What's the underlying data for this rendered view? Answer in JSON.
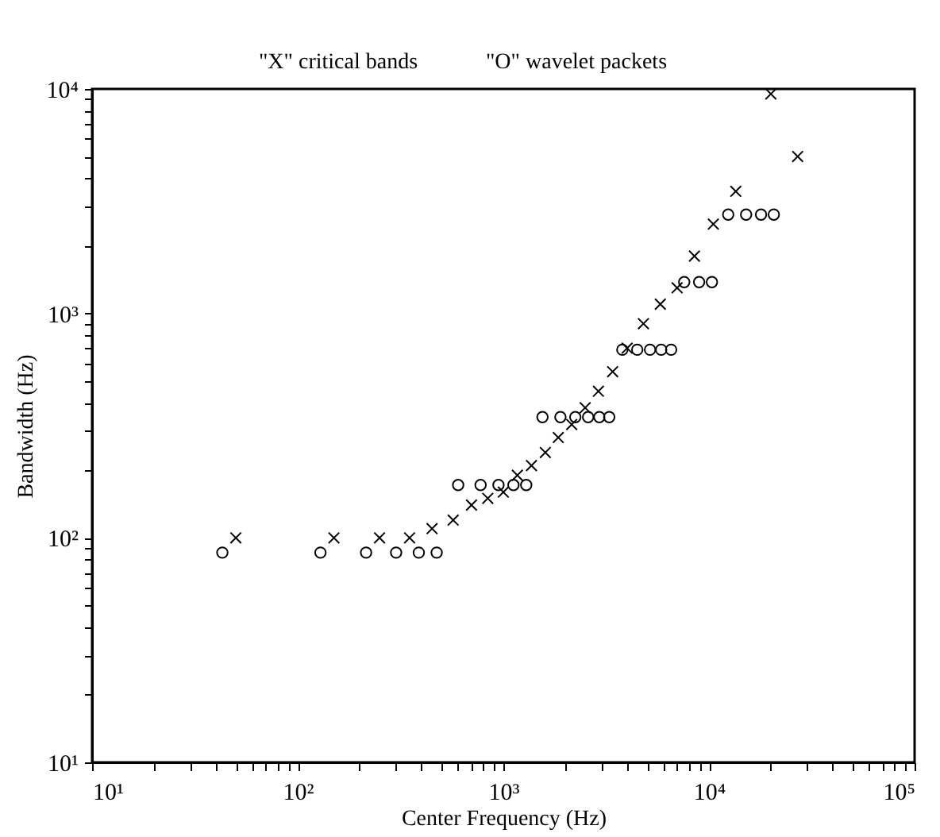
{
  "chart_data": {
    "type": "scatter",
    "xlabel": "Center Frequency (Hz)",
    "ylabel": "Bandwidth (Hz)",
    "annotations": [
      "\"X\" critical bands",
      "\"O\" wavelet packets"
    ],
    "log": "xy",
    "grid": false,
    "xlim": [
      10,
      100000
    ],
    "ylim": [
      10,
      10000
    ],
    "xticks": [
      {
        "value": 10,
        "label": "10¹"
      },
      {
        "value": 20,
        "label": null
      },
      {
        "value": 30,
        "label": null
      },
      {
        "value": 40,
        "label": null
      },
      {
        "value": 50,
        "label": null
      },
      {
        "value": 60,
        "label": null
      },
      {
        "value": 70,
        "label": null
      },
      {
        "value": 80,
        "label": null
      },
      {
        "value": 90,
        "label": null
      },
      {
        "value": 100,
        "label": "10²"
      },
      {
        "value": 200,
        "label": null
      },
      {
        "value": 300,
        "label": null
      },
      {
        "value": 400,
        "label": null
      },
      {
        "value": 500,
        "label": null
      },
      {
        "value": 600,
        "label": null
      },
      {
        "value": 700,
        "label": null
      },
      {
        "value": 800,
        "label": null
      },
      {
        "value": 900,
        "label": null
      },
      {
        "value": 1000,
        "label": "10³"
      },
      {
        "value": 2000,
        "label": null
      },
      {
        "value": 3000,
        "label": null
      },
      {
        "value": 4000,
        "label": null
      },
      {
        "value": 5000,
        "label": null
      },
      {
        "value": 6000,
        "label": null
      },
      {
        "value": 7000,
        "label": null
      },
      {
        "value": 8000,
        "label": null
      },
      {
        "value": 9000,
        "label": null
      },
      {
        "value": 10000,
        "label": "10⁴"
      },
      {
        "value": 20000,
        "label": null
      },
      {
        "value": 30000,
        "label": null
      },
      {
        "value": 40000,
        "label": null
      },
      {
        "value": 50000,
        "label": null
      },
      {
        "value": 60000,
        "label": null
      },
      {
        "value": 70000,
        "label": null
      },
      {
        "value": 80000,
        "label": null
      },
      {
        "value": 90000,
        "label": null
      },
      {
        "value": 100000,
        "label": "10⁵"
      }
    ],
    "yticks": [
      {
        "value": 10,
        "label": "10¹"
      },
      {
        "value": 20,
        "label": null
      },
      {
        "value": 30,
        "label": null
      },
      {
        "value": 40,
        "label": null
      },
      {
        "value": 50,
        "label": null
      },
      {
        "value": 60,
        "label": null
      },
      {
        "value": 70,
        "label": null
      },
      {
        "value": 80,
        "label": null
      },
      {
        "value": 90,
        "label": null
      },
      {
        "value": 100,
        "label": "10²"
      },
      {
        "value": 200,
        "label": null
      },
      {
        "value": 300,
        "label": null
      },
      {
        "value": 400,
        "label": null
      },
      {
        "value": 500,
        "label": null
      },
      {
        "value": 600,
        "label": null
      },
      {
        "value": 700,
        "label": null
      },
      {
        "value": 800,
        "label": null
      },
      {
        "value": 900,
        "label": null
      },
      {
        "value": 1000,
        "label": "10³"
      },
      {
        "value": 2000,
        "label": null
      },
      {
        "value": 3000,
        "label": null
      },
      {
        "value": 4000,
        "label": null
      },
      {
        "value": 5000,
        "label": null
      },
      {
        "value": 6000,
        "label": null
      },
      {
        "value": 7000,
        "label": null
      },
      {
        "value": 8000,
        "label": null
      },
      {
        "value": 9000,
        "label": null
      },
      {
        "value": 10000,
        "label": "10⁴"
      }
    ],
    "series": [
      {
        "color": "#000000",
        "marker": "cross",
        "x": [
          50,
          150,
          250,
          350,
          450,
          570,
          700,
          840,
          1000,
          1170,
          1370,
          1600,
          1850,
          2150,
          2500,
          2900,
          3400,
          4000,
          4800,
          5800,
          7000,
          8500,
          10500,
          13500,
          20000,
          27000
        ],
        "values": [
          100,
          100,
          100,
          100,
          110,
          120,
          140,
          150,
          160,
          190,
          210,
          240,
          280,
          320,
          380,
          450,
          550,
          700,
          900,
          1100,
          1300,
          1800,
          2500,
          3500,
          9500,
          5000
        ]
      },
      {
        "color": "#000000",
        "marker": "circle",
        "x": [
          43,
          129,
          215,
          301,
          388,
          474,
          603,
          775,
          947,
          1120,
          1292,
          1550,
          1895,
          2239,
          2584,
          2929,
          3273,
          3790,
          4479,
          5168,
          5857,
          6546,
          7579,
          8957,
          10335,
          12403,
          15159,
          17915,
          20671
        ],
        "values": [
          86,
          86,
          86,
          86,
          86,
          86,
          172,
          172,
          172,
          172,
          172,
          345,
          345,
          345,
          345,
          345,
          345,
          689,
          689,
          689,
          689,
          689,
          1378,
          1378,
          1378,
          2756,
          2756,
          2756,
          2756
        ]
      }
    ]
  }
}
